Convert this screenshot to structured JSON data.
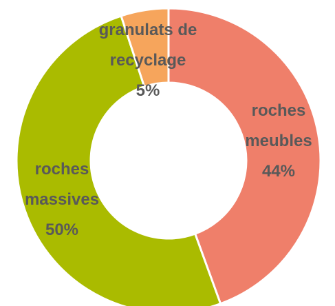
{
  "chart_data": {
    "type": "donut",
    "categories": [
      "roches meubles",
      "roches massives",
      "granulats de recyclage"
    ],
    "values": [
      44,
      50,
      5
    ],
    "value_labels": [
      "44%",
      "50%",
      "5%"
    ],
    "colors": [
      "#ef7f6a",
      "#aabb00",
      "#f6a55c"
    ]
  }
}
